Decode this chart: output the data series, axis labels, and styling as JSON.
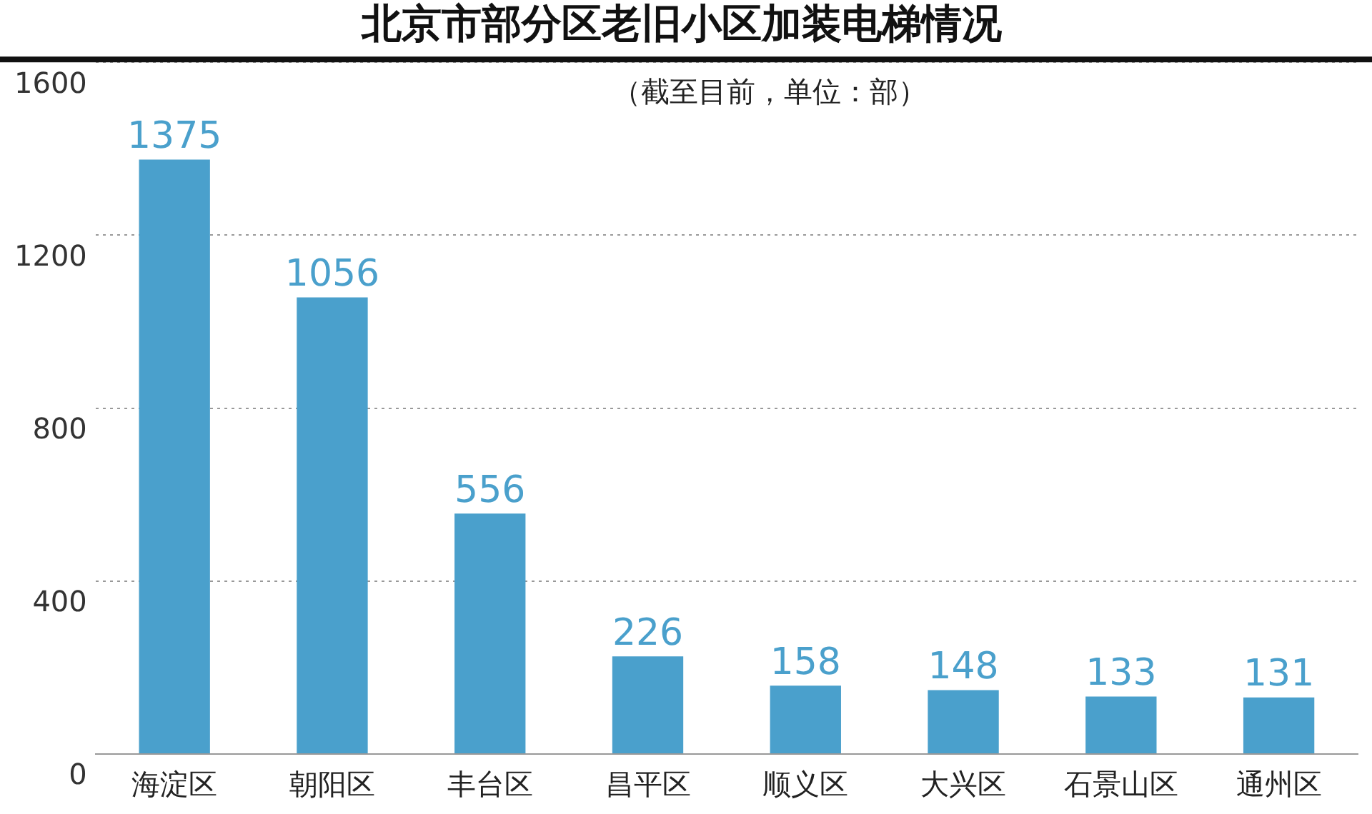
{
  "chart_data": {
    "type": "bar",
    "title": "北京市部分区老旧小区加装电梯情况",
    "subtitle": "（截至目前，单位：部）",
    "categories": [
      "海淀区",
      "朝阳区",
      "丰台区",
      "昌平区",
      "顺义区",
      "大兴区",
      "石景山区",
      "通州区"
    ],
    "values": [
      1375,
      1056,
      556,
      226,
      158,
      148,
      133,
      131
    ],
    "color": "#4aa0cc",
    "ylim": [
      0,
      1600
    ],
    "yticks": [
      0,
      400,
      800,
      1200,
      1600
    ],
    "grid": "y",
    "data_labels": true,
    "legend": false
  }
}
